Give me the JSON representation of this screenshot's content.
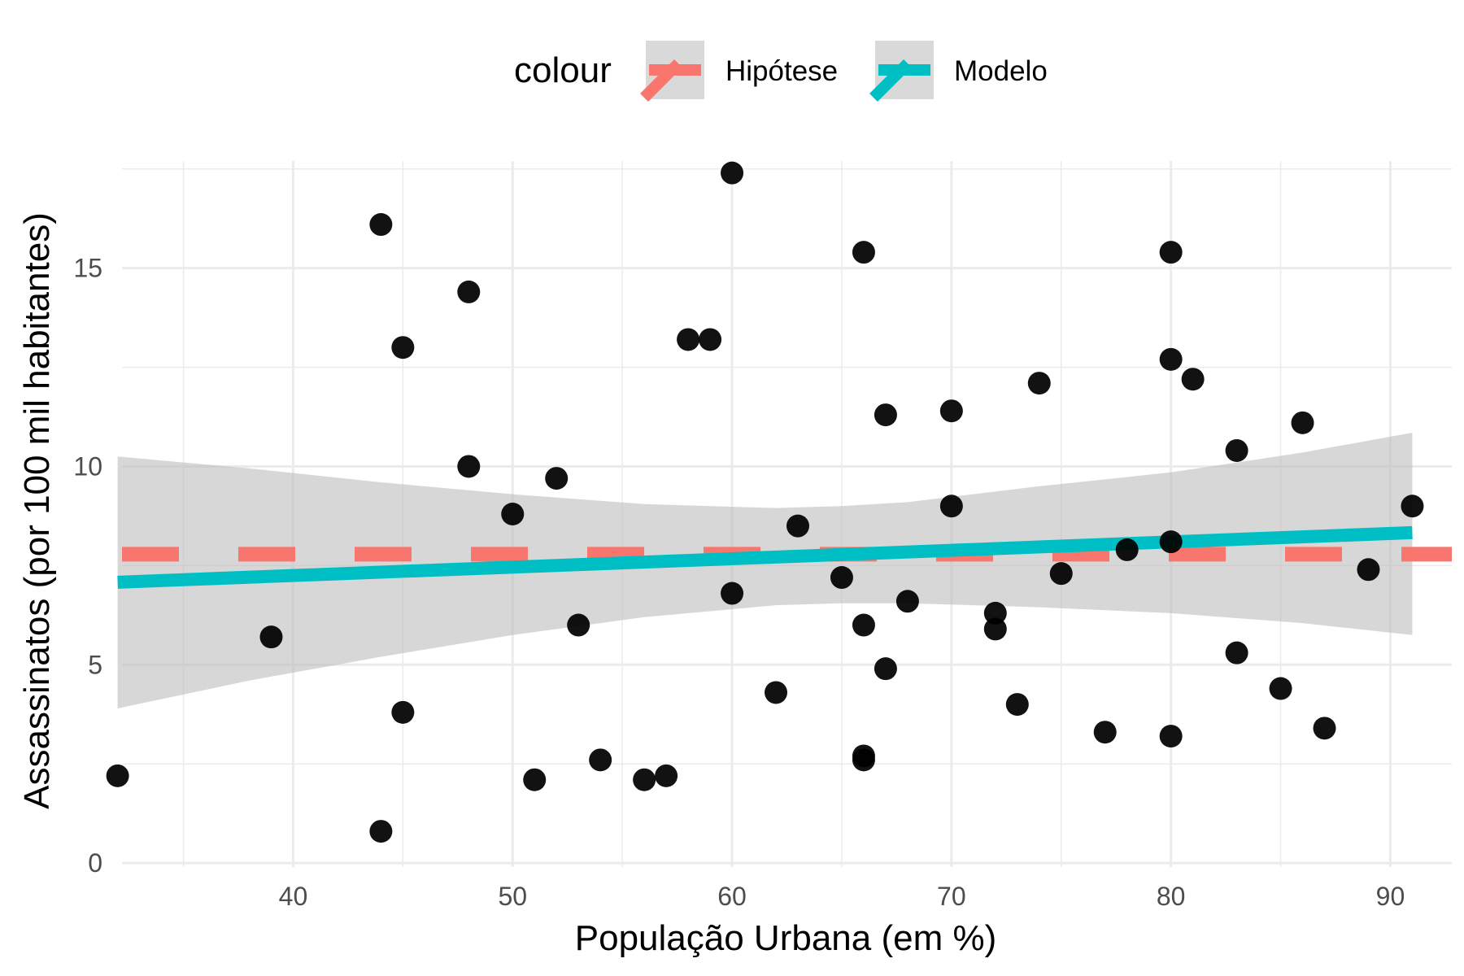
{
  "chart_data": {
    "type": "scatter",
    "xlabel": "População Urbana (em %)",
    "ylabel": "Assassinatos (por 100 mil habitantes)",
    "xlim": [
      32.2,
      92.8
    ],
    "ylim": [
      -0.1,
      17.7
    ],
    "x_ticks": [
      40,
      50,
      60,
      70,
      80,
      90
    ],
    "y_ticks": [
      0,
      5,
      10,
      15
    ],
    "grid": true,
    "legend": {
      "title": "colour",
      "position": "top",
      "entries": [
        {
          "label": "Hipótese",
          "color": "#F8766D"
        },
        {
          "label": "Modelo",
          "color": "#00BFC4"
        }
      ]
    },
    "points": {
      "x": [
        32,
        39,
        44,
        44,
        45,
        45,
        48,
        48,
        50,
        51,
        52,
        53,
        54,
        56,
        57,
        58,
        59,
        60,
        60,
        62,
        63,
        65,
        66,
        66,
        66,
        66,
        67,
        67,
        68,
        70,
        70,
        72,
        72,
        73,
        74,
        75,
        77,
        78,
        80,
        80,
        80,
        80,
        81,
        83,
        83,
        85,
        86,
        87,
        89,
        91
      ],
      "y": [
        2.2,
        5.7,
        16.1,
        0.8,
        13.0,
        3.8,
        14.4,
        10.0,
        8.8,
        2.1,
        9.7,
        6.0,
        2.6,
        2.1,
        2.2,
        13.2,
        13.2,
        17.4,
        6.8,
        4.3,
        8.5,
        7.2,
        15.4,
        6.0,
        2.7,
        2.6,
        11.3,
        4.9,
        6.6,
        11.4,
        9.0,
        6.3,
        5.9,
        4.0,
        12.1,
        7.3,
        3.3,
        7.9,
        15.4,
        12.7,
        8.1,
        3.2,
        12.2,
        10.4,
        5.3,
        4.4,
        11.1,
        3.4,
        7.4,
        9.0
      ],
      "color": "#000000"
    },
    "hypothesis": {
      "name": "Hipótese",
      "y": 7.788,
      "style": "dashed",
      "color": "#F8766D"
    },
    "model": {
      "name": "Modelo",
      "color": "#00BFC4",
      "x": [
        32,
        91
      ],
      "y": [
        7.08,
        8.33
      ],
      "band": {
        "color": "#bdbdbd",
        "x": [
          32,
          38,
          44,
          50,
          56,
          62,
          65,
          68,
          74,
          80,
          86,
          91
        ],
        "lower": [
          3.9,
          4.6,
          5.2,
          5.75,
          6.2,
          6.5,
          6.55,
          6.55,
          6.45,
          6.3,
          6.05,
          5.75
        ],
        "upper": [
          10.25,
          9.95,
          9.6,
          9.3,
          9.05,
          8.95,
          9.0,
          9.1,
          9.5,
          9.85,
          10.35,
          10.85
        ]
      }
    }
  }
}
